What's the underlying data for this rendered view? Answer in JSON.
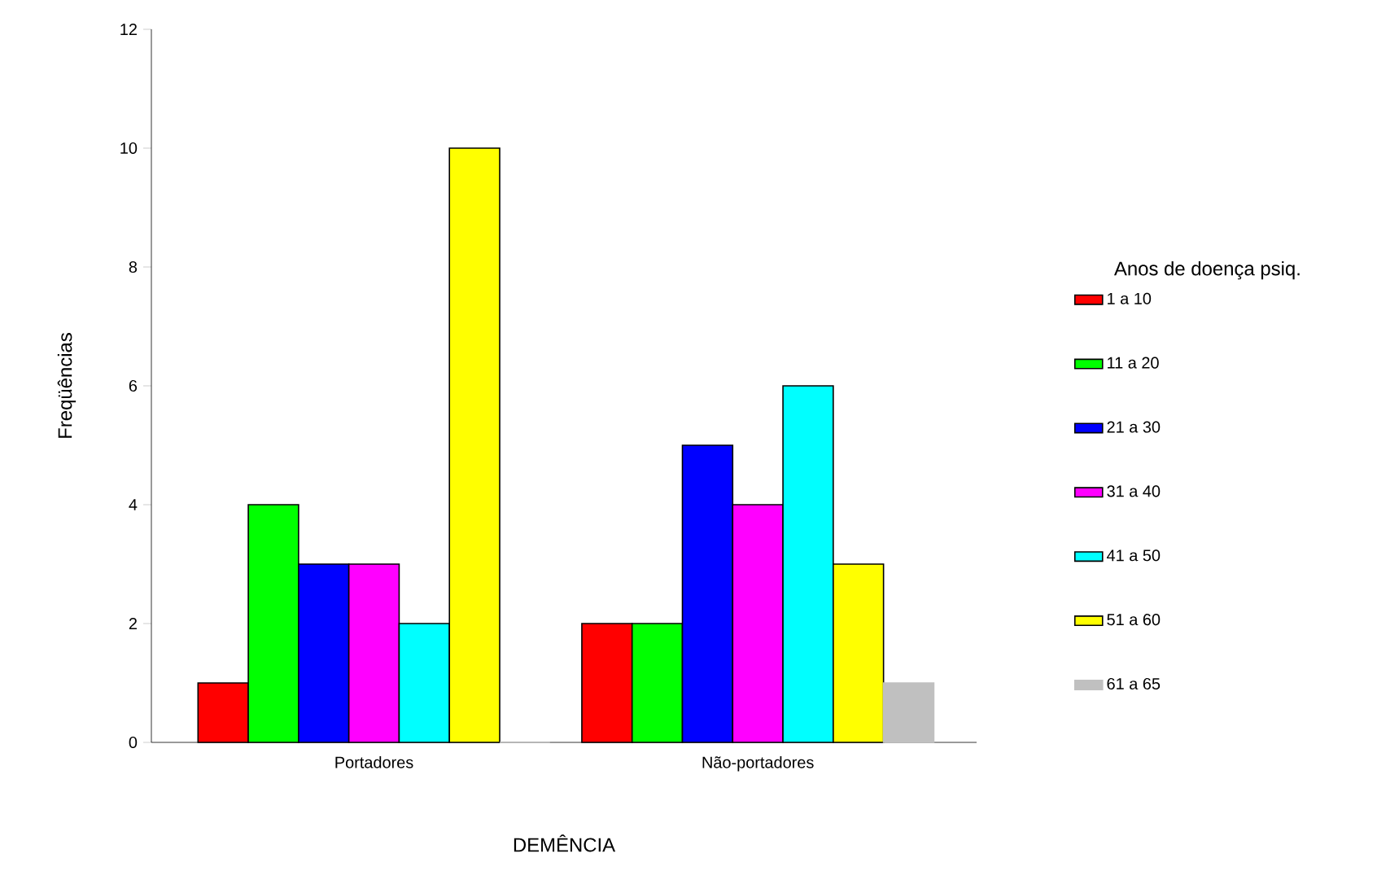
{
  "chart_data": {
    "type": "bar",
    "xlabel": "DEMÊNCIA",
    "ylabel": "Freqüências",
    "legend_title": "Anos de doença psiq.",
    "categories": [
      "Portadores",
      "Não-portadores"
    ],
    "series": [
      {
        "name": "1 a 10",
        "color": "#ff0000",
        "values": [
          1,
          2
        ]
      },
      {
        "name": "11 a 20",
        "color": "#00ff00",
        "values": [
          4,
          2
        ]
      },
      {
        "name": "21 a 30",
        "color": "#0000ff",
        "values": [
          3,
          5
        ]
      },
      {
        "name": "31 a 40",
        "color": "#ff00ff",
        "values": [
          3,
          4
        ]
      },
      {
        "name": "41 a 50",
        "color": "#00ffff",
        "values": [
          2,
          6
        ]
      },
      {
        "name": "51 a 60",
        "color": "#ffff00",
        "values": [
          10,
          3
        ]
      },
      {
        "name": "61 a 65",
        "color": "#c0c0c0",
        "values": [
          0,
          1
        ]
      }
    ],
    "ylim": [
      0,
      12
    ],
    "yticks": [
      0,
      2,
      4,
      6,
      8,
      10,
      12
    ],
    "legend": "right"
  }
}
